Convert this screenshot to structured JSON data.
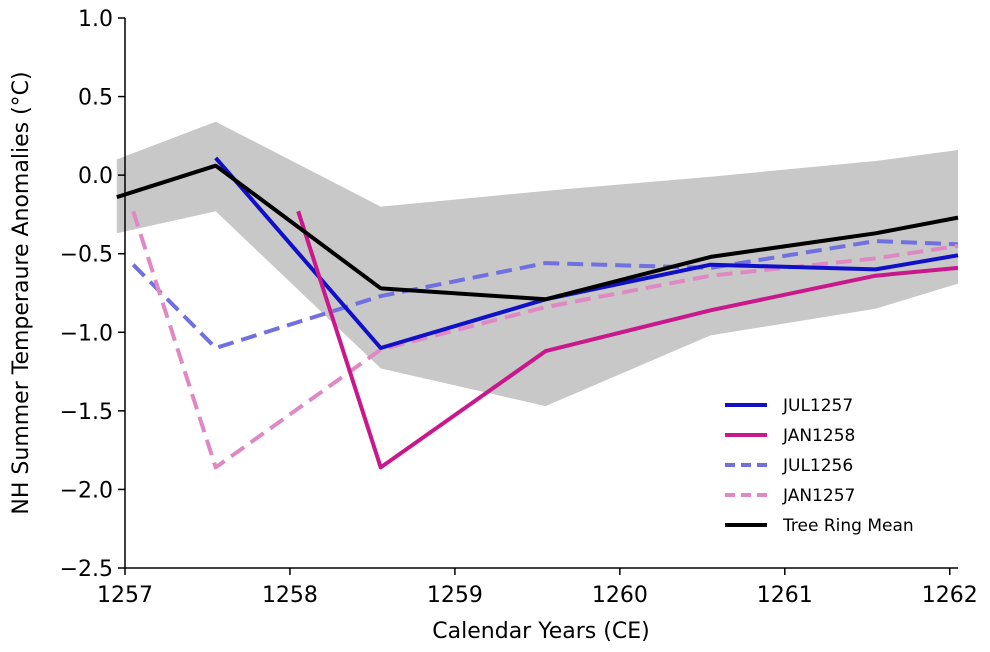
{
  "chart_data": {
    "type": "line",
    "xlabel": "Calendar Years (CE)",
    "ylabel": "NH Summer Temperaure Anomalies (°C)",
    "xlim": [
      1257.0,
      1262.05
    ],
    "ylim": [
      -2.5,
      1.0
    ],
    "xticks": [
      1257,
      1258,
      1259,
      1260,
      1261,
      1262
    ],
    "yticks": [
      1.0,
      0.5,
      0.0,
      -0.5,
      -1.0,
      -1.5,
      -2.0,
      -2.5
    ],
    "ytick_labels": [
      "1.0",
      "0.5",
      "0.0",
      "−0.5",
      "−1.0",
      "−1.5",
      "−2.0",
      "−2.5"
    ],
    "legend_position": "lower-right",
    "band": {
      "color": "#c8c8c8",
      "x": [
        1256.95,
        1257.55,
        1258.55,
        1259.55,
        1260.55,
        1261.55,
        1262.05
      ],
      "upper": [
        0.1,
        0.34,
        -0.2,
        -0.1,
        -0.01,
        0.09,
        0.16
      ],
      "lower": [
        -0.37,
        -0.23,
        -1.23,
        -1.47,
        -1.02,
        -0.85,
        -0.69
      ]
    },
    "series": [
      {
        "name": "JUL1257",
        "color": "#1010c8",
        "style": "solid",
        "x": [
          1257.55,
          1258.55,
          1259.55,
          1260.55,
          1261.55,
          1262.05
        ],
        "y": [
          0.11,
          -1.1,
          -0.79,
          -0.57,
          -0.6,
          -0.51
        ]
      },
      {
        "name": "JAN1258",
        "color": "#c8188c",
        "style": "solid",
        "x": [
          1258.05,
          1258.55,
          1259.55,
          1260.55,
          1261.55,
          1262.05
        ],
        "y": [
          -0.23,
          -1.86,
          -1.12,
          -0.86,
          -0.64,
          -0.59
        ]
      },
      {
        "name": "JUL1256",
        "color": "#7070e0",
        "style": "dashed",
        "x": [
          1257.05,
          1257.55,
          1258.55,
          1259.55,
          1260.55,
          1261.55,
          1262.05
        ],
        "y": [
          -0.57,
          -1.1,
          -0.77,
          -0.56,
          -0.59,
          -0.42,
          -0.44
        ]
      },
      {
        "name": "JAN1257",
        "color": "#e088c4",
        "style": "dashed",
        "x": [
          1257.05,
          1257.55,
          1258.55,
          1259.55,
          1260.55,
          1261.55,
          1262.05
        ],
        "y": [
          -0.23,
          -1.86,
          -1.11,
          -0.84,
          -0.64,
          -0.53,
          -0.45
        ]
      },
      {
        "name": "Tree Ring Mean",
        "color": "#000000",
        "style": "solid",
        "x": [
          1256.95,
          1257.55,
          1258.55,
          1259.55,
          1260.55,
          1261.55,
          1262.05
        ],
        "y": [
          -0.14,
          0.06,
          -0.72,
          -0.79,
          -0.52,
          -0.37,
          -0.27
        ]
      }
    ]
  }
}
